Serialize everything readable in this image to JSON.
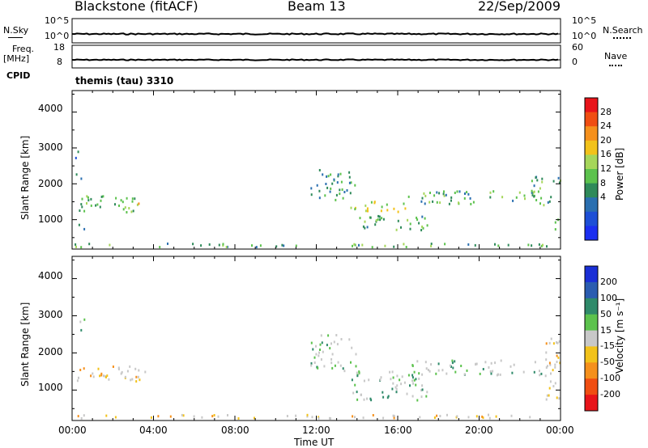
{
  "header": {
    "station": "Blackstone (fitACF)",
    "beam": "Beam 13",
    "date": "22/Sep/2009"
  },
  "aux_panels": {
    "nsky_label": "N.Sky",
    "nsky_ticks": [
      "10^5",
      "10^0"
    ],
    "nsearch_label": "N.Search",
    "nsearch_ticks": [
      "10^5",
      "10^0"
    ],
    "freq_label": "Freq.",
    "freq_unit": "[MHz]",
    "freq_ticks": [
      "18",
      "8"
    ],
    "nave_label": "Nave",
    "nave_ticks": [
      "60",
      "0"
    ],
    "cpid_label": "CPID",
    "cpid_value": "themis (tau) 3310"
  },
  "axes": {
    "ylabel": "Slant Range [km]",
    "yticks": [
      "4000",
      "3000",
      "2000",
      "1000"
    ],
    "xticks": [
      "00:00",
      "04:00",
      "08:00",
      "12:00",
      "16:00",
      "20:00",
      "00:00"
    ],
    "xlabel": "Time UT"
  },
  "colorbars": {
    "power": {
      "label": "Power [dB]",
      "ticks": [
        "28",
        "24",
        "20",
        "16",
        "12",
        "8",
        "4"
      ],
      "colors": [
        "#e8141a",
        "#f04e12",
        "#f5901c",
        "#f2c21a",
        "#a6d65a",
        "#5cc24d",
        "#2f8a5a",
        "#2a6fb0",
        "#1d4fd6",
        "#1b2ff0"
      ]
    },
    "velocity": {
      "label": "Velocity [m s⁻¹]",
      "ticks": [
        "200",
        "100",
        "50",
        "15",
        "-15",
        "-50",
        "-100",
        "-200"
      ],
      "colors": [
        "#1a2fd6",
        "#2a5cb0",
        "#2f8a6a",
        "#5cc24d",
        "#c8c8c8",
        "#f2c21a",
        "#f5901c",
        "#f04e12",
        "#e8141a"
      ]
    }
  },
  "chart_data": [
    {
      "type": "line",
      "title": "N.Sky / N.Search",
      "x_range_hours": [
        0,
        24
      ],
      "ylim": [
        "10^0",
        "10^5"
      ],
      "note": "near-constant trace at low values across the day"
    },
    {
      "type": "line",
      "title": "Freq. / Nave",
      "x_range_hours": [
        0,
        24
      ],
      "ylim": [
        8,
        18
      ],
      "note": "near-constant trace across the day"
    },
    {
      "type": "heatmap",
      "title": "Power",
      "xlabel": "Time UT",
      "ylabel": "Slant Range [km]",
      "x_range_hours": [
        0,
        24
      ],
      "ylim": [
        180,
        4600
      ],
      "colorbar_range_dB": [
        0,
        30
      ],
      "clusters": [
        {
          "t0": 0.1,
          "t1": 0.6,
          "r0": 2650,
          "r1": 2950,
          "level": 0.25
        },
        {
          "t0": 0.05,
          "t1": 0.5,
          "r0": 2100,
          "r1": 2450,
          "level": 0.35
        },
        {
          "t0": 0.2,
          "t1": 3.4,
          "r0": 1200,
          "r1": 1700,
          "level": 0.45
        },
        {
          "t0": 0.0,
          "t1": 0.6,
          "r0": 700,
          "r1": 900,
          "level": 0.3
        },
        {
          "t0": 0.0,
          "t1": 24.0,
          "r0": 230,
          "r1": 330,
          "level": 0.4
        },
        {
          "t0": 2.0,
          "t1": 3.6,
          "r0": 1250,
          "r1": 1450,
          "level": 0.6
        },
        {
          "t0": 11.7,
          "t1": 14.0,
          "r0": 1500,
          "r1": 2400,
          "level": 0.35
        },
        {
          "t0": 13.6,
          "t1": 16.5,
          "r0": 1200,
          "r1": 1500,
          "level": 0.55
        },
        {
          "t0": 14.0,
          "t1": 17.5,
          "r0": 700,
          "r1": 1100,
          "level": 0.4
        },
        {
          "t0": 16.5,
          "t1": 23.5,
          "r0": 1400,
          "r1": 1800,
          "level": 0.4
        },
        {
          "t0": 22.5,
          "t1": 24.0,
          "r0": 1700,
          "r1": 2400,
          "level": 0.35
        },
        {
          "t0": 23.4,
          "t1": 24.0,
          "r0": 700,
          "r1": 1200,
          "level": 0.5
        }
      ]
    },
    {
      "type": "heatmap",
      "title": "Velocity",
      "xlabel": "Time UT",
      "ylabel": "Slant Range [km]",
      "x_range_hours": [
        0,
        24
      ],
      "ylim": [
        180,
        4600
      ],
      "colorbar_range_ms": [
        -200,
        200
      ],
      "clusters": [
        {
          "t0": 0.1,
          "t1": 0.6,
          "r0": 2600,
          "r1": 2950,
          "level": 0.5
        },
        {
          "t0": 0.2,
          "t1": 3.6,
          "r0": 1200,
          "r1": 1700,
          "level": 0.35
        },
        {
          "t0": 0.0,
          "t1": 24.0,
          "r0": 230,
          "r1": 330,
          "level": 0.3
        },
        {
          "t0": 11.7,
          "t1": 14.0,
          "r0": 1500,
          "r1": 2500,
          "level": 0.55
        },
        {
          "t0": 13.6,
          "t1": 17.5,
          "r0": 700,
          "r1": 1500,
          "level": 0.5
        },
        {
          "t0": 16.5,
          "t1": 23.5,
          "r0": 1400,
          "r1": 1800,
          "level": 0.5
        },
        {
          "t0": 23.2,
          "t1": 24.0,
          "r0": 700,
          "r1": 2400,
          "level": 0.45
        }
      ]
    }
  ]
}
